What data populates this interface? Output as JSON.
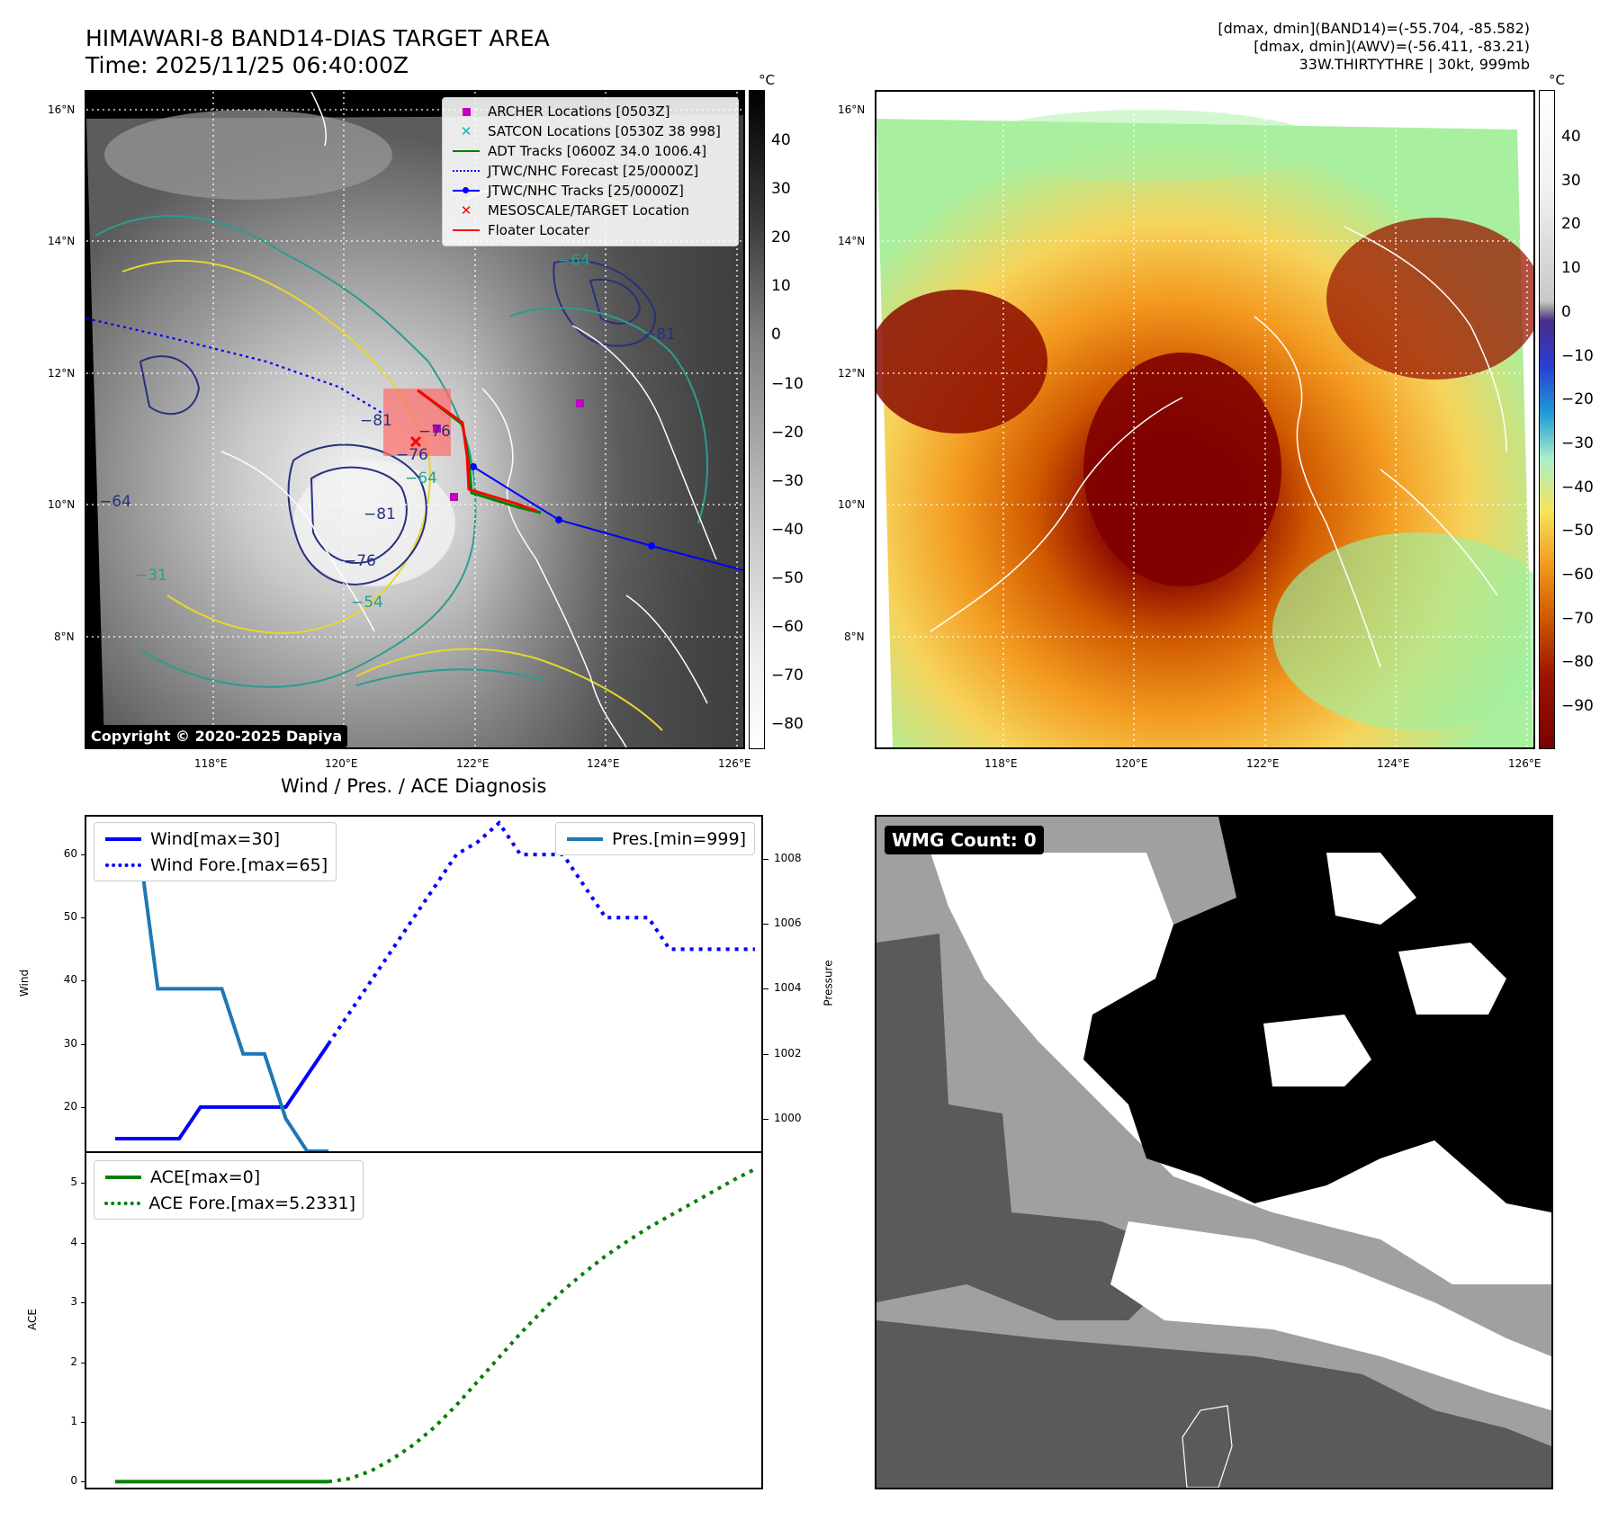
{
  "header": {
    "title_line1": "HIMAWARI-8 BAND14-DIAS TARGET AREA",
    "title_line2": "Time: 2025/11/25 06:40:00Z",
    "info_line1": "[dmax, dmin](BAND14)=(-55.704, -85.582)",
    "info_line2": "[dmax, dmin](AWV)=(-56.411, -83.21)",
    "info_line3": "33W.THIRTYTHRE | 30kt, 999mb"
  },
  "map_left": {
    "lat_ticks": [
      "16°N",
      "14°N",
      "12°N",
      "10°N",
      "8°N"
    ],
    "lon_ticks": [
      "118°E",
      "120°E",
      "122°E",
      "124°E",
      "126°E"
    ],
    "colorbar_unit": "°C",
    "colorbar_ticks": [
      "40",
      "30",
      "20",
      "10",
      "0",
      "−10",
      "−20",
      "−30",
      "−40",
      "−50",
      "−60",
      "−70",
      "−80"
    ],
    "copyright": "Copyright © 2020-2025 Dapiya",
    "contour_labels": [
      "−64",
      "−76",
      "−81",
      "−54",
      "−64",
      "−81",
      "−76",
      "−81",
      "−76",
      "−64",
      "−31"
    ],
    "legend": [
      {
        "label": "ARCHER Locations [0503Z]",
        "symbol": "square",
        "color": "#bf00bf"
      },
      {
        "label": "SATCON Locations [0530Z 38 998]",
        "symbol": "x",
        "color": "#00bfbf"
      },
      {
        "label": "ADT Tracks [0600Z 34.0 1006.4]",
        "symbol": "line",
        "color": "#008000"
      },
      {
        "label": "JTWC/NHC Forecast [25/0000Z]",
        "symbol": "dotted",
        "color": "#0000ff"
      },
      {
        "label": "JTWC/NHC Tracks [25/0000Z]",
        "symbol": "line-dot",
        "color": "#0000ff"
      },
      {
        "label": "MESOSCALE/TARGET Location",
        "symbol": "x",
        "color": "#ff0000"
      },
      {
        "label": "Floater Locater",
        "symbol": "line",
        "color": "#ff0000"
      }
    ]
  },
  "map_right": {
    "lat_ticks": [
      "16°N",
      "14°N",
      "12°N",
      "10°N",
      "8°N"
    ],
    "lon_ticks": [
      "118°E",
      "120°E",
      "122°E",
      "124°E",
      "126°E"
    ],
    "colorbar_unit": "°C",
    "colorbar_ticks": [
      "40",
      "30",
      "20",
      "10",
      "0",
      "−10",
      "−20",
      "−30",
      "−40",
      "−50",
      "−60",
      "−70",
      "−80",
      "−90"
    ]
  },
  "diagnosis_title": "Wind / Pres. / ACE Diagnosis",
  "wmg_label": "WMG Count: 0",
  "chart_data": [
    {
      "type": "line",
      "title": "",
      "ylabel": "Wind",
      "y2label": "Pressure",
      "ylim": [
        13,
        66
      ],
      "y2lim": [
        999,
        1009.3
      ],
      "yticks": [
        20,
        30,
        40,
        50,
        60
      ],
      "y2ticks": [
        1000,
        1002,
        1004,
        1006,
        1008
      ],
      "legend_left": [
        "Wind[max=30]",
        "Wind Fore.[max=65]"
      ],
      "legend_right": [
        "Pres.[min=999]"
      ],
      "series": [
        {
          "name": "Wind[max=30]",
          "axis": "left",
          "color": "#0000ff",
          "style": "solid",
          "x": [
            0,
            2,
            3,
            4,
            5,
            6,
            7,
            8,
            9,
            10
          ],
          "values": [
            15,
            15,
            15,
            20,
            20,
            20,
            20,
            20,
            25,
            30
          ]
        },
        {
          "name": "Wind Fore.[max=65]",
          "axis": "left",
          "color": "#0000ff",
          "style": "dotted",
          "x": [
            10,
            11,
            12,
            13,
            14,
            15,
            16,
            17,
            18,
            19,
            20,
            21,
            22,
            23,
            24,
            25,
            26,
            27,
            28,
            29,
            30
          ],
          "values": [
            30,
            35,
            40,
            45,
            50,
            55,
            60,
            62,
            65,
            60,
            60,
            60,
            55,
            50,
            50,
            50,
            45,
            45,
            45,
            45,
            45
          ]
        },
        {
          "name": "Pres.[min=999]",
          "axis": "right",
          "color": "#1f77b4",
          "style": "solid",
          "x": [
            0,
            1,
            2,
            3,
            4,
            5,
            6,
            7,
            8,
            9,
            10
          ],
          "values": [
            1009,
            1009,
            1004,
            1004,
            1004,
            1004,
            1002,
            1002,
            1000,
            999,
            999
          ]
        }
      ]
    },
    {
      "type": "line",
      "title": "",
      "ylabel": "ACE",
      "ylim": [
        -0.1,
        5.5
      ],
      "yticks": [
        0,
        1,
        2,
        3,
        4,
        5
      ],
      "legend_left": [
        "ACE[max=0]",
        "ACE Fore.[max=5.2331]"
      ],
      "series": [
        {
          "name": "ACE[max=0]",
          "color": "#008000",
          "style": "solid",
          "x": [
            0,
            2,
            4,
            6,
            8,
            10
          ],
          "values": [
            0,
            0,
            0,
            0,
            0,
            0
          ]
        },
        {
          "name": "ACE Fore.[max=5.2331]",
          "color": "#008000",
          "style": "dotted",
          "x": [
            10,
            11,
            12,
            13,
            14,
            15,
            16,
            17,
            18,
            19,
            20,
            21,
            22,
            23,
            24,
            25,
            26,
            27,
            28,
            29,
            30
          ],
          "values": [
            0,
            0.05,
            0.18,
            0.38,
            0.62,
            0.92,
            1.28,
            1.68,
            2.08,
            2.48,
            2.85,
            3.2,
            3.5,
            3.78,
            4.02,
            4.25,
            4.45,
            4.65,
            4.85,
            5.05,
            5.23
          ]
        }
      ]
    }
  ]
}
